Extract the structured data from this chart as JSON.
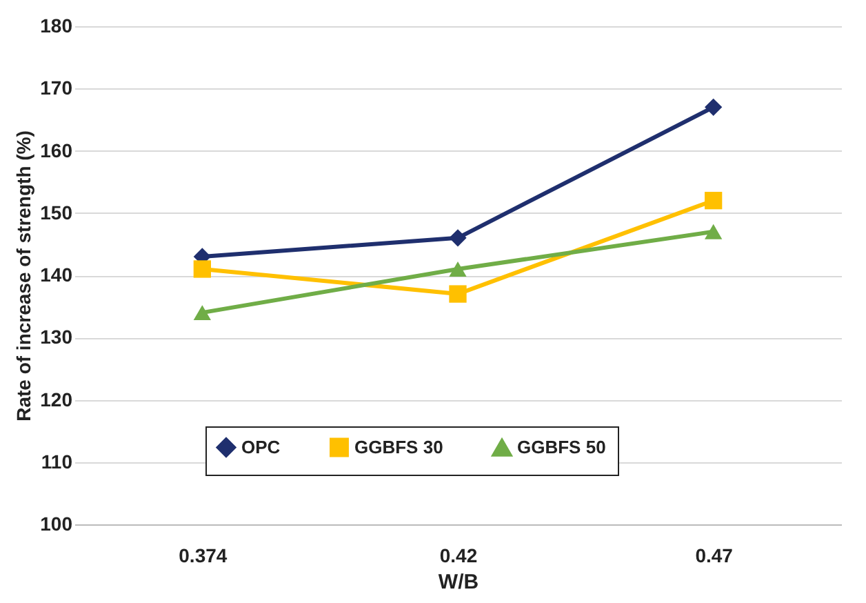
{
  "chart_data": {
    "type": "line",
    "xlabel": "W/B",
    "ylabel": "Rate of increase of strength (%)",
    "categories": [
      "0.374",
      "0.42",
      "0.47"
    ],
    "series": [
      {
        "name": "OPC",
        "color": "#1f2f6e",
        "marker": "diamond",
        "values": [
          143,
          146,
          167
        ]
      },
      {
        "name": "GGBFS 30",
        "color": "#ffc000",
        "marker": "square",
        "values": [
          141,
          137,
          152
        ]
      },
      {
        "name": "GGBFS 50",
        "color": "#70ad47",
        "marker": "triangle",
        "values": [
          134,
          141,
          147
        ]
      }
    ],
    "ylim": [
      100,
      180
    ],
    "yticks": [
      100,
      110,
      120,
      130,
      140,
      150,
      160,
      170,
      180
    ],
    "grid": "y",
    "legend": "bottom",
    "line_style": "solid"
  }
}
